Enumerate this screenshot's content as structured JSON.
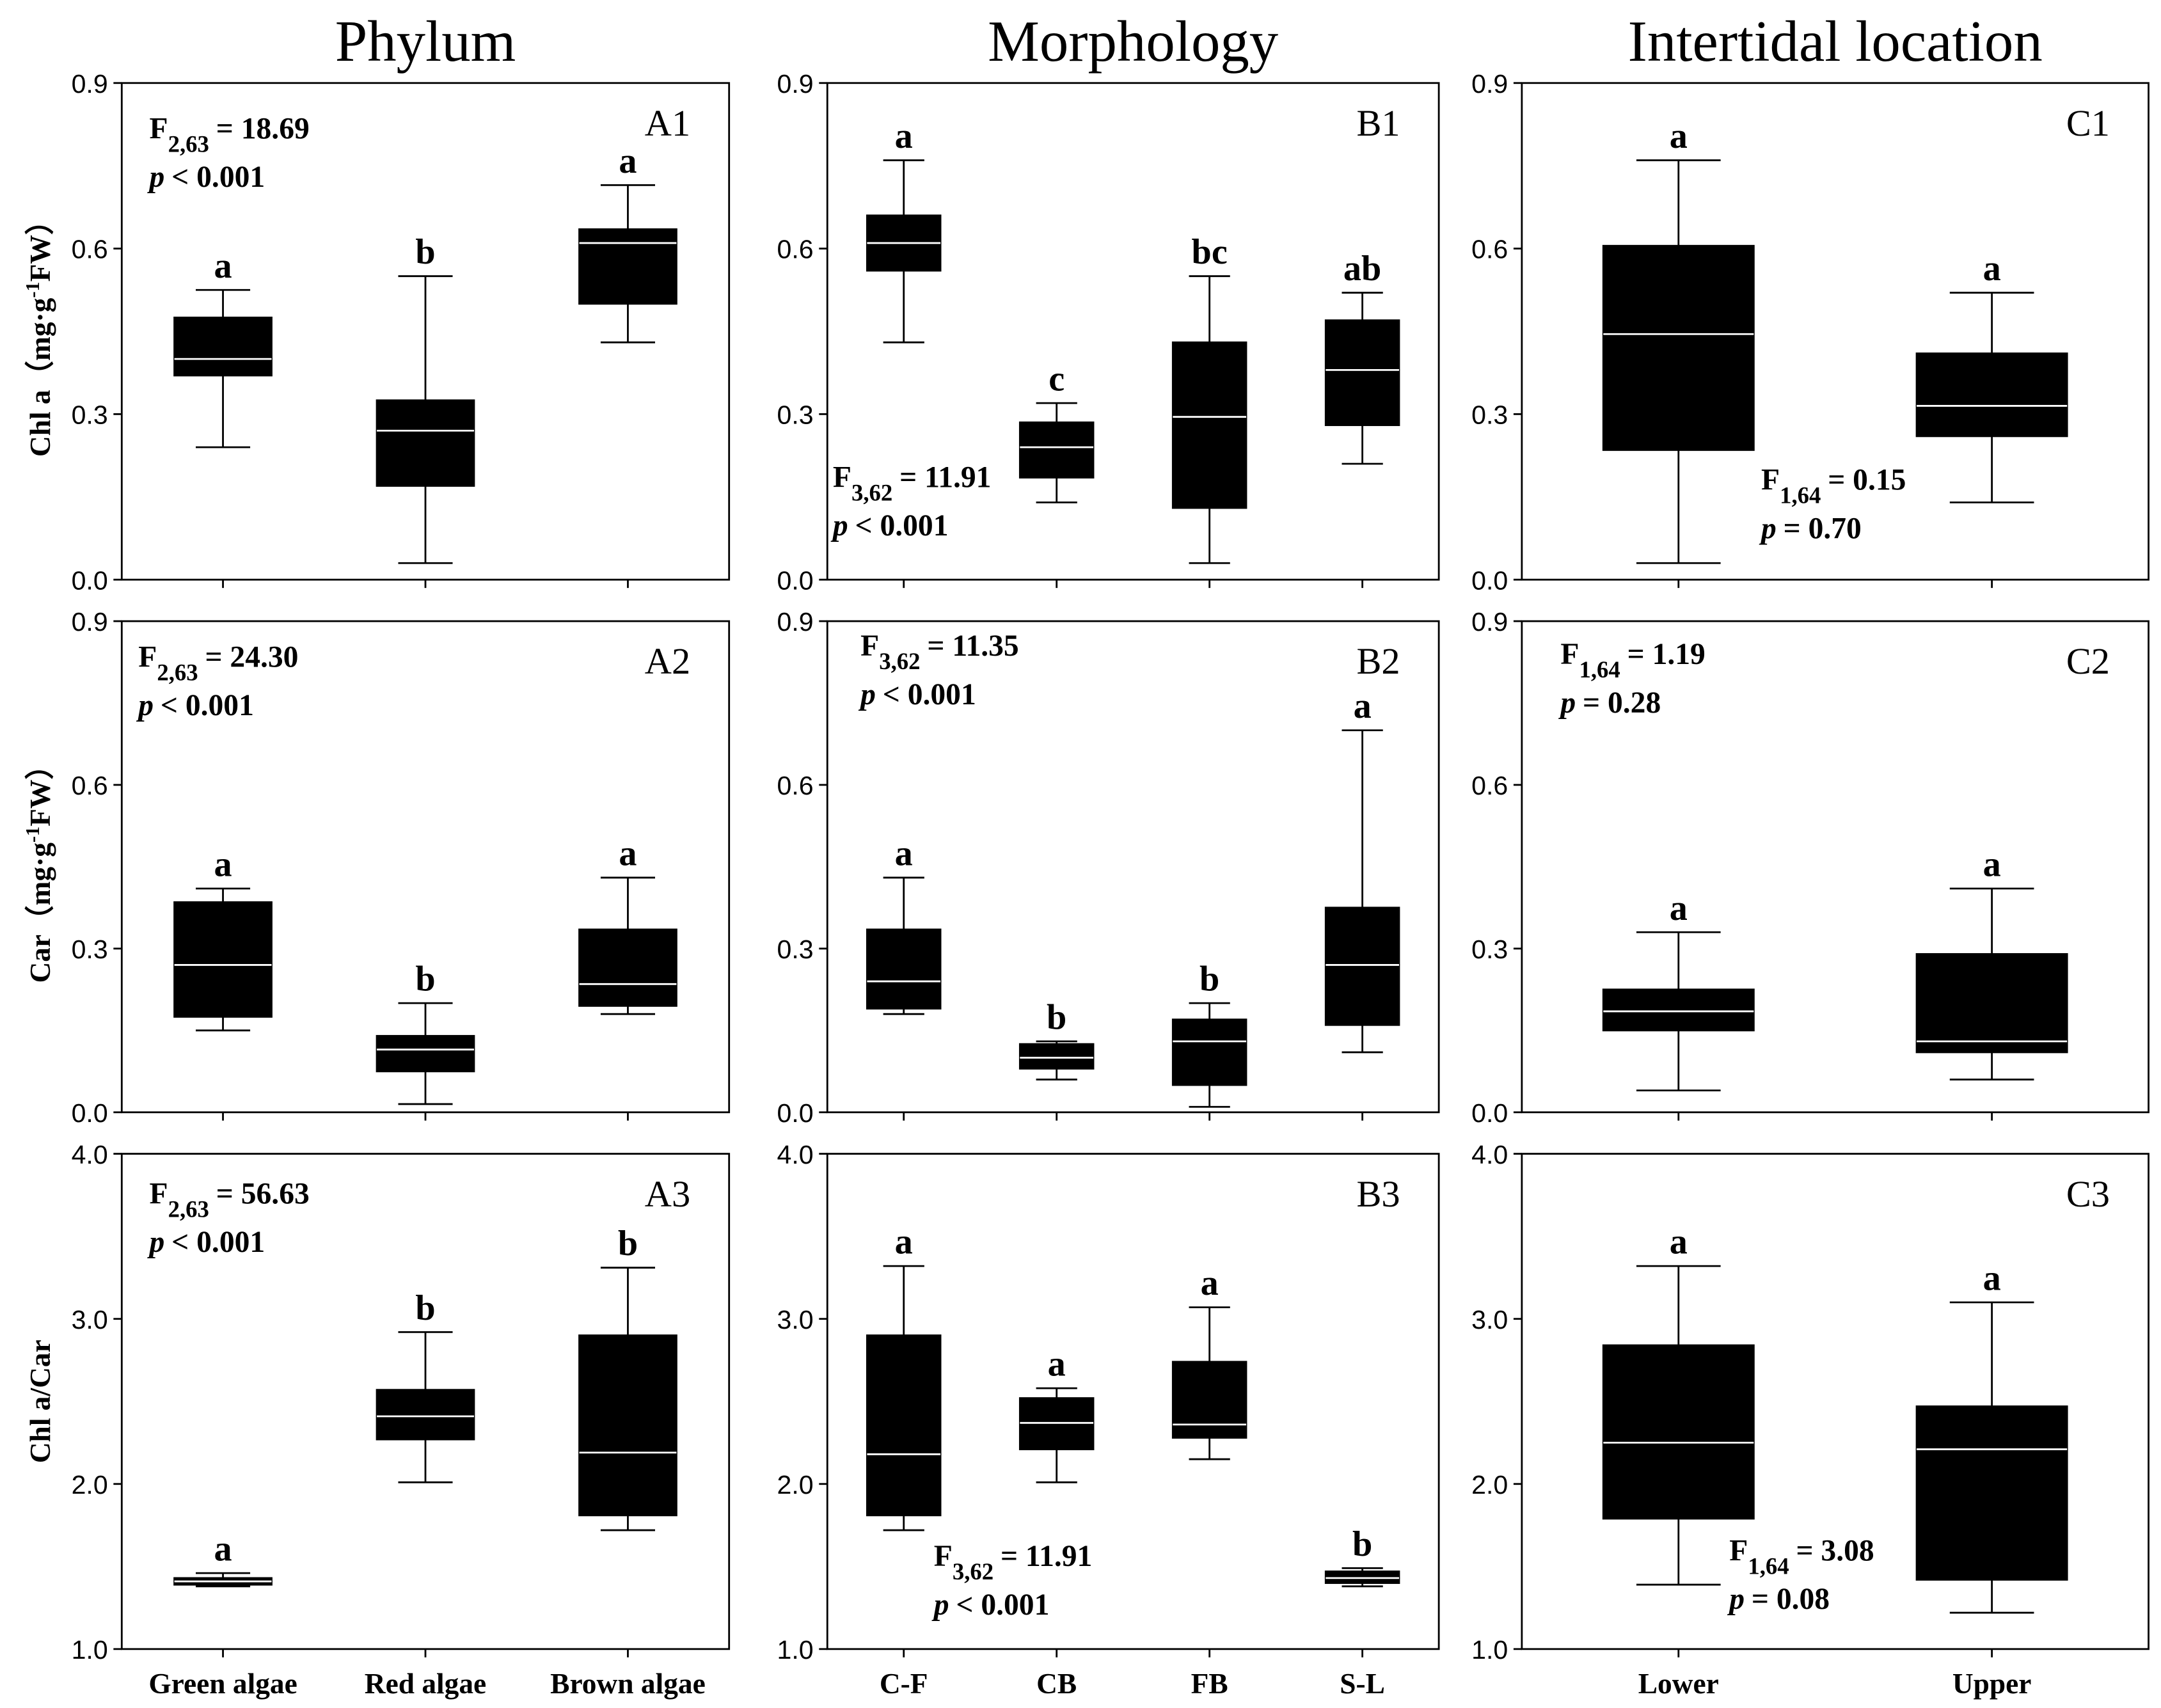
{
  "column_titles": [
    "Phylum",
    "Morphology",
    "Intertidal location"
  ],
  "row_labels": [
    {
      "text": "Chl a（mg·g",
      "sup": "-1",
      "after": "FW）"
    },
    {
      "text": "Car（mg·g",
      "sup": "-1",
      "after": "FW）"
    },
    {
      "text": "Chl a/Car"
    }
  ],
  "chart_data": [
    {
      "type": "box",
      "panel": "A1",
      "ylim": [
        0,
        0.9
      ],
      "yticks": [
        {
          "value": 0,
          "label": "0.0"
        },
        0.3,
        0.6,
        0.9
      ],
      "boxes": [
        {
          "min": 0.24,
          "q1": 0.37,
          "median": 0.4,
          "q3": 0.475,
          "max": 0.525
        },
        {
          "min": 0.03,
          "q1": 0.17,
          "median": 0.27,
          "q3": 0.325,
          "max": 0.55
        },
        {
          "min": 0.43,
          "q1": 0.5,
          "median": 0.61,
          "q3": 0.635,
          "max": 0.715
        }
      ],
      "letters": [
        "a",
        "b",
        "a"
      ],
      "stat": {
        "f": "F",
        "df": "2,63",
        "f_value": "= 18.69",
        "p": "p",
        "p_value": "< 0.001"
      }
    },
    {
      "type": "box",
      "panel": "B1",
      "ylim": [
        0,
        0.9
      ],
      "yticks": [
        {
          "value": 0,
          "label": "0.0"
        },
        0.3,
        0.6,
        0.9
      ],
      "boxes": [
        {
          "min": 0.43,
          "q1": 0.56,
          "median": 0.61,
          "q3": 0.66,
          "max": 0.76
        },
        {
          "min": 0.14,
          "q1": 0.185,
          "median": 0.24,
          "q3": 0.285,
          "max": 0.32
        },
        {
          "min": 0.03,
          "q1": 0.13,
          "median": 0.295,
          "q3": 0.43,
          "max": 0.55
        },
        {
          "min": 0.21,
          "q1": 0.28,
          "median": 0.38,
          "q3": 0.47,
          "max": 0.52
        }
      ],
      "letters": [
        "a",
        "c",
        "bc",
        "ab"
      ],
      "stat": {
        "f": "F",
        "df": "3,62",
        "f_value": "= 11.91",
        "p": "p",
        "p_value": "< 0.001"
      }
    },
    {
      "type": "box",
      "panel": "C1",
      "ylim": [
        0,
        0.9
      ],
      "yticks": [
        {
          "value": 0,
          "label": "0.0"
        },
        0.3,
        0.6,
        0.9
      ],
      "boxes": [
        {
          "min": 0.03,
          "q1": 0.235,
          "median": 0.445,
          "q3": 0.605,
          "max": 0.76
        },
        {
          "min": 0.14,
          "q1": 0.26,
          "median": 0.315,
          "q3": 0.41,
          "max": 0.52
        }
      ],
      "letters": [
        "a",
        "a"
      ],
      "stat": {
        "f": "F",
        "df": "1,64",
        "f_value": "= 0.15",
        "p": "p",
        "p_value": "= 0.70"
      }
    },
    {
      "type": "box",
      "panel": "A2",
      "ylim": [
        0,
        0.9
      ],
      "yticks": [
        {
          "value": 0,
          "label": "0.0"
        },
        0.3,
        0.6,
        0.9
      ],
      "boxes": [
        {
          "min": 0.15,
          "q1": 0.175,
          "median": 0.27,
          "q3": 0.385,
          "max": 0.41
        },
        {
          "min": 0.015,
          "q1": 0.075,
          "median": 0.115,
          "q3": 0.14,
          "max": 0.2
        },
        {
          "min": 0.18,
          "q1": 0.195,
          "median": 0.235,
          "q3": 0.335,
          "max": 0.43
        }
      ],
      "letters": [
        "a",
        "b",
        "a"
      ],
      "stat": {
        "f": "F",
        "df": "2,63",
        "f_value": "= 24.30",
        "p": "p",
        "p_value": "< 0.001"
      }
    },
    {
      "type": "box",
      "panel": "B2",
      "ylim": [
        0,
        0.9
      ],
      "yticks": [
        {
          "value": 0,
          "label": "0.0"
        },
        0.3,
        0.6,
        0.9
      ],
      "boxes": [
        {
          "min": 0.18,
          "q1": 0.19,
          "median": 0.24,
          "q3": 0.335,
          "max": 0.43
        },
        {
          "min": 0.06,
          "q1": 0.08,
          "median": 0.1,
          "q3": 0.125,
          "max": 0.13
        },
        {
          "min": 0.01,
          "q1": 0.05,
          "median": 0.13,
          "q3": 0.17,
          "max": 0.2
        },
        {
          "min": 0.11,
          "q1": 0.16,
          "median": 0.27,
          "q3": 0.375,
          "max": 0.7
        }
      ],
      "letters": [
        "a",
        "b",
        "b",
        "a"
      ],
      "stat": {
        "f": "F",
        "df": "3,62",
        "f_value": "= 11.35",
        "p": "p",
        "p_value": "< 0.001"
      }
    },
    {
      "type": "box",
      "panel": "C2",
      "ylim": [
        0,
        0.9
      ],
      "yticks": [
        {
          "value": 0,
          "label": "0.0"
        },
        0.3,
        0.6,
        0.9
      ],
      "boxes": [
        {
          "min": 0.04,
          "q1": 0.15,
          "median": 0.185,
          "q3": 0.225,
          "max": 0.33
        },
        {
          "min": 0.06,
          "q1": 0.11,
          "median": 0.13,
          "q3": 0.29,
          "max": 0.41
        }
      ],
      "letters": [
        "a",
        "a"
      ],
      "stat": {
        "f": "F",
        "df": "1,64",
        "f_value": "= 1.19",
        "p": "p",
        "p_value": "= 0.28"
      }
    },
    {
      "type": "box",
      "panel": "A3",
      "ylim": [
        1,
        4
      ],
      "yticks": [
        {
          "value": 1,
          "label": "1.0"
        },
        {
          "value": 2,
          "label": "2.0"
        },
        {
          "value": 3,
          "label": "3.0"
        },
        {
          "value": 4,
          "label": "4.0"
        }
      ],
      "categories": [
        "Green algae",
        "Red algae",
        "Brown algae"
      ],
      "boxes": [
        {
          "min": 1.38,
          "q1": 1.39,
          "median": 1.41,
          "q3": 1.43,
          "max": 1.46
        },
        {
          "min": 2.01,
          "q1": 2.27,
          "median": 2.41,
          "q3": 2.57,
          "max": 2.92
        },
        {
          "min": 1.72,
          "q1": 1.81,
          "median": 2.19,
          "q3": 2.9,
          "max": 3.31
        }
      ],
      "letters": [
        "a",
        "b",
        "b"
      ],
      "stat": {
        "f": "F",
        "df": "2,63",
        "f_value": "= 56.63",
        "p": "p",
        "p_value": "< 0.001"
      }
    },
    {
      "type": "box",
      "panel": "B3",
      "ylim": [
        1,
        4
      ],
      "yticks": [
        {
          "value": 1,
          "label": "1.0"
        },
        {
          "value": 2,
          "label": "2.0"
        },
        {
          "value": 3,
          "label": "3.0"
        },
        {
          "value": 4,
          "label": "4.0"
        }
      ],
      "categories": [
        "C-F",
        "CB",
        "FB",
        "S-L"
      ],
      "boxes": [
        {
          "min": 1.72,
          "q1": 1.81,
          "median": 2.18,
          "q3": 2.9,
          "max": 3.32
        },
        {
          "min": 2.01,
          "q1": 2.21,
          "median": 2.37,
          "q3": 2.52,
          "max": 2.58
        },
        {
          "min": 2.15,
          "q1": 2.28,
          "median": 2.36,
          "q3": 2.74,
          "max": 3.07
        },
        {
          "min": 1.38,
          "q1": 1.4,
          "median": 1.43,
          "q3": 1.47,
          "max": 1.49
        }
      ],
      "letters": [
        "a",
        "a",
        "a",
        "b"
      ],
      "stat": {
        "f": "F",
        "df": "3,62",
        "f_value": "= 11.91",
        "p": "p",
        "p_value": "< 0.001"
      }
    },
    {
      "type": "box",
      "panel": "C3",
      "ylim": [
        1,
        4
      ],
      "yticks": [
        {
          "value": 1,
          "label": "1.0"
        },
        {
          "value": 2,
          "label": "2.0"
        },
        {
          "value": 3,
          "label": "3.0"
        },
        {
          "value": 4,
          "label": "4.0"
        }
      ],
      "categories": [
        "Lower",
        "Upper"
      ],
      "boxes": [
        {
          "min": 1.39,
          "q1": 1.79,
          "median": 2.25,
          "q3": 2.84,
          "max": 3.32
        },
        {
          "min": 1.22,
          "q1": 1.42,
          "median": 2.21,
          "q3": 2.47,
          "max": 3.1
        }
      ],
      "letters": [
        "a",
        "a"
      ],
      "stat": {
        "f": "F",
        "df": "1,64",
        "f_value": "= 3.08",
        "p": "p",
        "p_value": "= 0.08"
      }
    }
  ]
}
